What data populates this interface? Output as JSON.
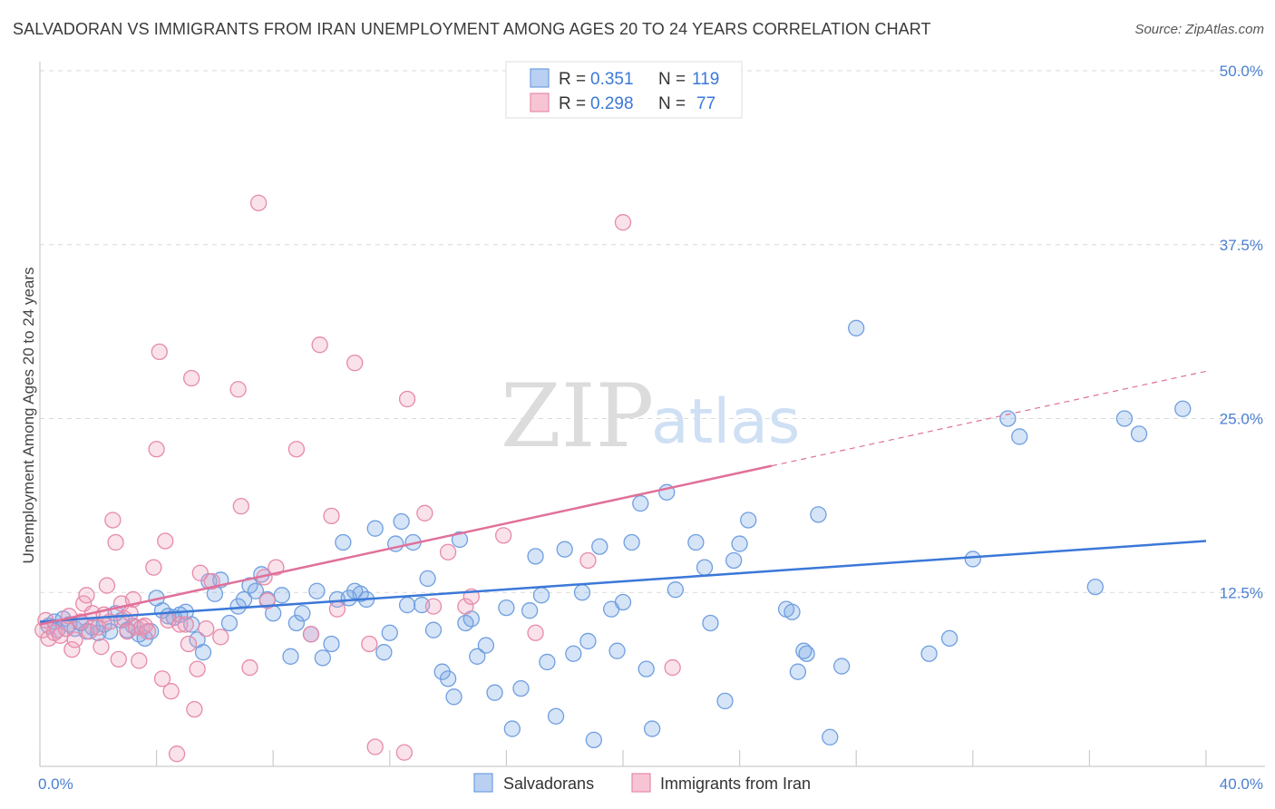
{
  "title": "SALVADORAN VS IMMIGRANTS FROM IRAN UNEMPLOYMENT AMONG AGES 20 TO 24 YEARS CORRELATION CHART",
  "source": "Source: ZipAtlas.com",
  "watermark": {
    "zip": "ZIP",
    "atlas": "atlas"
  },
  "legend": {
    "r_label": "R =",
    "n_label": "N =",
    "rows": [
      {
        "name": "Salvadorans",
        "r": "0.351",
        "n": "119",
        "color": "#6f9fe0",
        "fill": "#b9d0f2"
      },
      {
        "name": "Immigrants from Iran",
        "r": "0.298",
        "n": "77",
        "color": "#e68aa8",
        "fill": "#f7c4d4"
      }
    ]
  },
  "chart_data": {
    "type": "scatter",
    "title": "SALVADORAN VS IMMIGRANTS FROM IRAN UNEMPLOYMENT AMONG AGES 20 TO 24 YEARS CORRELATION CHART",
    "xlabel": "",
    "ylabel": "Unemployment Among Ages 20 to 24 years",
    "xlim": [
      0,
      40
    ],
    "ylim": [
      0,
      50
    ],
    "x_tick_labels": [
      "0.0%",
      "40.0%"
    ],
    "y_ticks": [
      12.5,
      25.0,
      37.5,
      50.0
    ],
    "y_tick_labels": [
      "12.5%",
      "25.0%",
      "37.5%",
      "50.0%"
    ],
    "grid": true,
    "legend_position": "top-center",
    "series": [
      {
        "name": "Salvadorans",
        "color": "#3b78d8",
        "trendline": {
          "x": [
            0,
            40
          ],
          "y": [
            10.4,
            16.2
          ],
          "style": "solid"
        },
        "points": [
          [
            0.3,
            10.1
          ],
          [
            0.5,
            10.4
          ],
          [
            0.6,
            9.8
          ],
          [
            0.8,
            10.6
          ],
          [
            1.0,
            10.2
          ],
          [
            1.2,
            9.9
          ],
          [
            1.4,
            10.3
          ],
          [
            1.6,
            9.7
          ],
          [
            1.8,
            10.0
          ],
          [
            2.0,
            9.6
          ],
          [
            2.2,
            10.2
          ],
          [
            2.4,
            9.7
          ],
          [
            2.6,
            11.0
          ],
          [
            2.8,
            10.5
          ],
          [
            3.0,
            9.8
          ],
          [
            3.2,
            10.1
          ],
          [
            3.4,
            9.5
          ],
          [
            3.6,
            9.2
          ],
          [
            3.8,
            9.7
          ],
          [
            4.0,
            12.1
          ],
          [
            4.2,
            11.2
          ],
          [
            4.4,
            10.8
          ],
          [
            4.6,
            10.7
          ],
          [
            4.8,
            10.9
          ],
          [
            5.0,
            11.1
          ],
          [
            5.2,
            10.2
          ],
          [
            5.4,
            9.1
          ],
          [
            5.6,
            8.2
          ],
          [
            5.8,
            13.3
          ],
          [
            6.0,
            12.4
          ],
          [
            6.2,
            13.4
          ],
          [
            6.5,
            10.3
          ],
          [
            6.8,
            11.5
          ],
          [
            7.0,
            12.0
          ],
          [
            7.2,
            13.0
          ],
          [
            7.4,
            12.6
          ],
          [
            7.6,
            13.8
          ],
          [
            7.8,
            12.0
          ],
          [
            8.0,
            11.0
          ],
          [
            8.3,
            12.3
          ],
          [
            8.6,
            7.9
          ],
          [
            8.8,
            10.3
          ],
          [
            9.0,
            11.0
          ],
          [
            9.3,
            9.5
          ],
          [
            9.5,
            12.6
          ],
          [
            9.7,
            7.8
          ],
          [
            10.0,
            8.8
          ],
          [
            10.2,
            12.0
          ],
          [
            10.4,
            16.1
          ],
          [
            10.6,
            12.1
          ],
          [
            10.8,
            12.6
          ],
          [
            11.0,
            12.4
          ],
          [
            11.2,
            12.0
          ],
          [
            11.5,
            17.1
          ],
          [
            11.8,
            8.2
          ],
          [
            12.0,
            9.6
          ],
          [
            12.2,
            16.0
          ],
          [
            12.4,
            17.6
          ],
          [
            12.6,
            11.6
          ],
          [
            12.8,
            16.1
          ],
          [
            13.1,
            11.6
          ],
          [
            13.3,
            13.5
          ],
          [
            13.5,
            9.8
          ],
          [
            13.8,
            6.8
          ],
          [
            14.0,
            6.3
          ],
          [
            14.2,
            5.0
          ],
          [
            14.4,
            16.3
          ],
          [
            14.6,
            10.3
          ],
          [
            14.8,
            10.6
          ],
          [
            15.0,
            7.9
          ],
          [
            15.3,
            8.7
          ],
          [
            15.6,
            5.3
          ],
          [
            16.0,
            11.4
          ],
          [
            16.2,
            2.7
          ],
          [
            16.5,
            5.6
          ],
          [
            16.8,
            11.2
          ],
          [
            17.0,
            15.1
          ],
          [
            17.2,
            12.3
          ],
          [
            17.4,
            7.5
          ],
          [
            17.7,
            3.6
          ],
          [
            18.0,
            15.6
          ],
          [
            18.3,
            8.1
          ],
          [
            18.6,
            12.5
          ],
          [
            18.8,
            9.0
          ],
          [
            19.0,
            1.9
          ],
          [
            19.2,
            15.8
          ],
          [
            19.6,
            11.3
          ],
          [
            19.8,
            8.3
          ],
          [
            20.0,
            11.8
          ],
          [
            20.3,
            16.1
          ],
          [
            20.6,
            18.9
          ],
          [
            20.8,
            7.0
          ],
          [
            21.0,
            2.7
          ],
          [
            21.5,
            19.7
          ],
          [
            21.8,
            12.7
          ],
          [
            22.5,
            16.1
          ],
          [
            22.8,
            14.3
          ],
          [
            23.0,
            10.3
          ],
          [
            23.5,
            4.7
          ],
          [
            23.8,
            14.8
          ],
          [
            24.0,
            16.0
          ],
          [
            24.3,
            17.7
          ],
          [
            25.6,
            11.3
          ],
          [
            25.8,
            11.1
          ],
          [
            26.0,
            6.8
          ],
          [
            26.2,
            8.3
          ],
          [
            26.3,
            8.1
          ],
          [
            26.7,
            18.1
          ],
          [
            27.1,
            2.1
          ],
          [
            27.5,
            7.2
          ],
          [
            28.0,
            31.5
          ],
          [
            30.5,
            8.1
          ],
          [
            31.2,
            9.2
          ],
          [
            32.0,
            14.9
          ],
          [
            33.2,
            25.0
          ],
          [
            33.6,
            23.7
          ],
          [
            36.2,
            12.9
          ],
          [
            37.2,
            25.0
          ],
          [
            37.7,
            23.9
          ],
          [
            39.2,
            25.7
          ]
        ]
      },
      {
        "name": "Immigrants from Iran",
        "color": "#e0709a",
        "trendline": {
          "x": [
            0,
            25.1
          ],
          "y": [
            10.2,
            21.6
          ],
          "style": "solid",
          "extension": {
            "x": [
              25.1,
              40
            ],
            "y": [
              21.6,
              28.4
            ],
            "style": "dashed"
          }
        },
        "points": [
          [
            0.1,
            9.8
          ],
          [
            0.2,
            10.5
          ],
          [
            0.3,
            9.2
          ],
          [
            0.5,
            9.6
          ],
          [
            0.7,
            9.4
          ],
          [
            0.9,
            9.9
          ],
          [
            1.0,
            10.8
          ],
          [
            1.1,
            8.4
          ],
          [
            1.2,
            9.1
          ],
          [
            1.4,
            10.4
          ],
          [
            1.5,
            11.7
          ],
          [
            1.6,
            12.3
          ],
          [
            1.7,
            9.7
          ],
          [
            1.8,
            11.0
          ],
          [
            2.0,
            10.0
          ],
          [
            2.1,
            8.6
          ],
          [
            2.2,
            10.9
          ],
          [
            2.3,
            13.0
          ],
          [
            2.4,
            10.4
          ],
          [
            2.5,
            17.7
          ],
          [
            2.6,
            16.1
          ],
          [
            2.7,
            7.7
          ],
          [
            2.8,
            11.7
          ],
          [
            2.9,
            10.6
          ],
          [
            3.0,
            9.7
          ],
          [
            3.1,
            11.0
          ],
          [
            3.2,
            12.0
          ],
          [
            3.3,
            10.0
          ],
          [
            3.4,
            7.6
          ],
          [
            3.5,
            10.0
          ],
          [
            3.6,
            10.1
          ],
          [
            3.7,
            9.7
          ],
          [
            3.9,
            14.3
          ],
          [
            4.0,
            22.8
          ],
          [
            4.1,
            29.8
          ],
          [
            4.2,
            6.3
          ],
          [
            4.3,
            16.2
          ],
          [
            4.4,
            10.5
          ],
          [
            4.5,
            5.4
          ],
          [
            4.7,
            0.9
          ],
          [
            4.8,
            10.2
          ],
          [
            5.0,
            10.2
          ],
          [
            5.1,
            8.8
          ],
          [
            5.2,
            27.9
          ],
          [
            5.3,
            4.1
          ],
          [
            5.4,
            7.0
          ],
          [
            5.5,
            13.9
          ],
          [
            5.7,
            9.9
          ],
          [
            5.9,
            13.3
          ],
          [
            6.2,
            9.3
          ],
          [
            6.8,
            27.1
          ],
          [
            6.9,
            18.7
          ],
          [
            7.2,
            7.1
          ],
          [
            7.5,
            40.5
          ],
          [
            7.7,
            13.6
          ],
          [
            7.8,
            11.9
          ],
          [
            8.1,
            14.3
          ],
          [
            8.8,
            22.8
          ],
          [
            9.3,
            9.5
          ],
          [
            9.6,
            30.3
          ],
          [
            10.0,
            18.0
          ],
          [
            10.2,
            11.3
          ],
          [
            10.8,
            29.0
          ],
          [
            11.3,
            8.8
          ],
          [
            11.5,
            1.4
          ],
          [
            12.5,
            1.0
          ],
          [
            12.6,
            26.4
          ],
          [
            13.2,
            18.2
          ],
          [
            13.5,
            11.5
          ],
          [
            14.0,
            15.4
          ],
          [
            14.6,
            11.5
          ],
          [
            14.8,
            12.2
          ],
          [
            15.9,
            16.6
          ],
          [
            17.0,
            9.6
          ],
          [
            18.8,
            14.8
          ],
          [
            20.0,
            39.1
          ],
          [
            21.7,
            7.1
          ]
        ]
      }
    ]
  }
}
